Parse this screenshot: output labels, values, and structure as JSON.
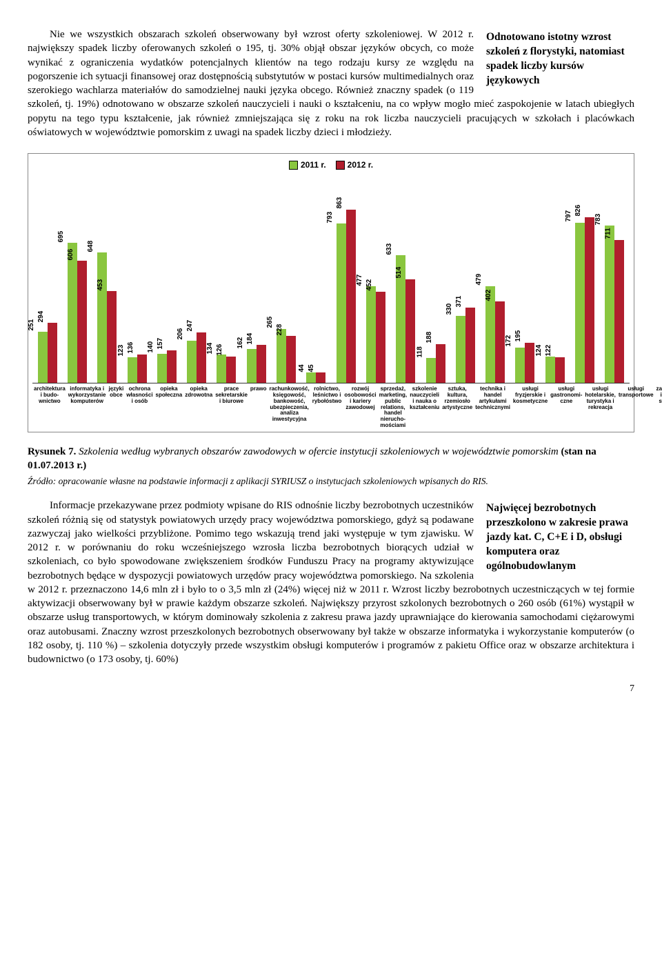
{
  "para1": "Nie we wszystkich obszarach szkoleń obserwowany był wzrost oferty szkoleniowej. W 2012 r. największy spadek liczby oferowanych szkoleń o 195, tj. 30% objął obszar języków obcych, co może wynikać z ograniczenia wydatków potencjalnych klientów na tego rodzaju kursy ze względu na pogorszenie ich sytuacji finansowej oraz dostępnością substytutów w postaci kursów multimedialnych oraz szerokiego wachlarza materiałów do samodzielnej nauki języka obcego. Również znaczny spadek (o 119 szkoleń, tj. 19%) odnotowano w obszarze szkoleń nauczycieli i nauki o kształceniu, na co wpływ mogło mieć zaspokojenie w latach ubiegłych popytu na tego typu kształcenie, jak również zmniejszająca się z roku na rok liczba nauczycieli pracujących w szkołach i placówkach oświatowych w województwie pomorskim z uwagi na spadek liczby dzieci i młodzieży.",
  "box1": "Odnotowano istotny wzrost szkoleń z florystyki, natomiast spadek liczby kursów językowych",
  "chart": {
    "legend": {
      "y2011": "2011 r.",
      "y2012": "2012 r."
    },
    "colors": {
      "y2011": "#8ac63f",
      "y2012": "#b01e2d",
      "border": "#000000"
    },
    "max": 900,
    "categories": [
      {
        "label": "architektura i budo- wnictwo",
        "v11": 251,
        "v12": 294
      },
      {
        "label": "informatyka i wykorzystanie komputerów",
        "v11": 695,
        "v12": 606
      },
      {
        "label": "języki obce",
        "v11": 648,
        "v12": 453
      },
      {
        "label": "ochrona własności i osób",
        "v11": 123,
        "v12": 136
      },
      {
        "label": "opieka społeczna",
        "v11": 140,
        "v12": 157
      },
      {
        "label": "opieka zdrowotna",
        "v11": 206,
        "v12": 247
      },
      {
        "label": "prace sekretarskie i biurowe",
        "v11": 134,
        "v12": 126
      },
      {
        "label": "prawo",
        "v11": 162,
        "v12": 184
      },
      {
        "label": "rachunkowość, księgowość, bankowość, ubezpieczenia, analiza inwestycyjna",
        "v11": 265,
        "v12": 228
      },
      {
        "label": "rolnictwo, leśnictwo i rybołóstwo",
        "v11": 44,
        "v12": 45
      },
      {
        "label": "rozwój osobowości i kariery zawodowej",
        "v11": 793,
        "v12": 863
      },
      {
        "label": "sprzedaż, marketing, public relations, handel nierucho- mościami",
        "v11": 477,
        "v12": 452
      },
      {
        "label": "szkolenie nauczycieli i nauka o kształceniu",
        "v11": 633,
        "v12": 514
      },
      {
        "label": "sztuka, kultura, rzemiosło artystyczne",
        "v11": 118,
        "v12": 188
      },
      {
        "label": "technika i handel artykułami technicznymi",
        "v11": 330,
        "v12": 371
      },
      {
        "label": "usługi fryzjerskie i kosmetyczne",
        "v11": 479,
        "v12": 402
      },
      {
        "label": "usługi gastronomi- czne",
        "v11": 172,
        "v12": 195
      },
      {
        "label": "usługi hotelarskie, turystyka i rekreacja",
        "v11": 124,
        "v12": 122
      },
      {
        "label": "usługi transportowe",
        "v11": 797,
        "v12": 826
      },
      {
        "label": "zarządzanie i admini- strowanie",
        "v11": 783,
        "v12": 711
      }
    ]
  },
  "caption_bold": "Rysunek 7.",
  "caption_ital": "Szkolenia według wybranych obszarów zawodowych  w ofercie  instytucji szkoleniowych w województwie pomorskim ",
  "caption_bold2": "(stan na 01.07.2013 r.)",
  "source": "Źródło: opracowanie własne na podstawie informacji z aplikacji SYRIUSZ o instytucjach szkoleniowych wpisanych do RIS.",
  "box2": "Najwięcej bezrobotnych przeszkolono w zakresie prawa jazdy kat. C, C+E i D, obsługi komputera oraz ogólnobudowlanym",
  "para2a": "Informacje przekazywane przez podmioty wpisane do RIS odnośnie liczby bezrobotnych uczestników szkoleń różnią się od statystyk powiatowych urzędy pracy województwa pomorskiego, gdyż są podawane zazwyczaj jako wielkości przybliżone. Pomimo tego wskazują  trend jaki występuje w tym zjawisku. W 2012 r. w porównaniu do roku wcześniejszego wzrosła liczba bezrobotnych ",
  "para2b": "biorących udział w szkoleniach, co było spowodowane zwiększeniem środków Funduszu Pracy na programy aktywizujące bezrobotnych będące w dyspozycji powiatowych urzędów pracy województwa pomorskiego. Na szkolenia w 2012 r. przeznaczono 14,6 mln zł i było to o 3,5 mln zł (24%) więcej niż w 2011 r. Wzrost liczby bezrobotnych uczestniczących w tej formie aktywizacji obserwowany był w prawie każdym obszarze szkoleń. Największy przyrost szkolonych bezrobotnych o 260 osób (61%) wystąpił w obszarze usług transportowych, w którym dominowały szkolenia z zakresu prawa jazdy uprawniające do kierowania samochodami ciężarowymi oraz autobusami. Znaczny wzrost przeszkolonych bezrobotnych obserwowany był także w obszarze informatyka i wykorzystanie komputerów (o 182 osoby, tj. 110 %) – szkolenia dotyczyły przede wszystkim obsługi komputerów i programów z pakietu Office oraz w obszarze architektura i budownictwo (o 173 osoby, tj. 60%)",
  "pagenum": "7"
}
